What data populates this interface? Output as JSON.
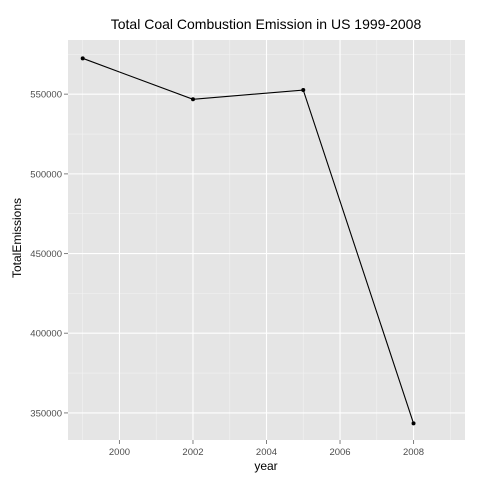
{
  "chart_data": {
    "type": "line",
    "title": "Total Coal Combustion Emission in US 1999-2008",
    "xlabel": "year",
    "ylabel": "TotalEmissions",
    "x": [
      1999,
      2002,
      2005,
      2008
    ],
    "series": [
      {
        "values": [
          572500,
          546800,
          552600,
          343400
        ]
      }
    ],
    "xlim": [
      1998.6,
      2009.4
    ],
    "ylim": [
      333000,
      584000
    ],
    "xticks": [
      2000,
      2002,
      2004,
      2006,
      2008
    ],
    "xtick_labels": [
      "2000",
      "2002",
      "2004",
      "2006",
      "2008"
    ],
    "yticks": [
      350000,
      400000,
      450000,
      500000,
      550000
    ],
    "ytick_labels": [
      "350000",
      "400000",
      "450000",
      "500000",
      "550000"
    ],
    "grid": true,
    "colors": {
      "panel_background": "#e5e5e5",
      "grid_major": "#ffffff",
      "grid_minor": "#f2f2f2",
      "line": "#000000",
      "point": "#000000"
    }
  }
}
